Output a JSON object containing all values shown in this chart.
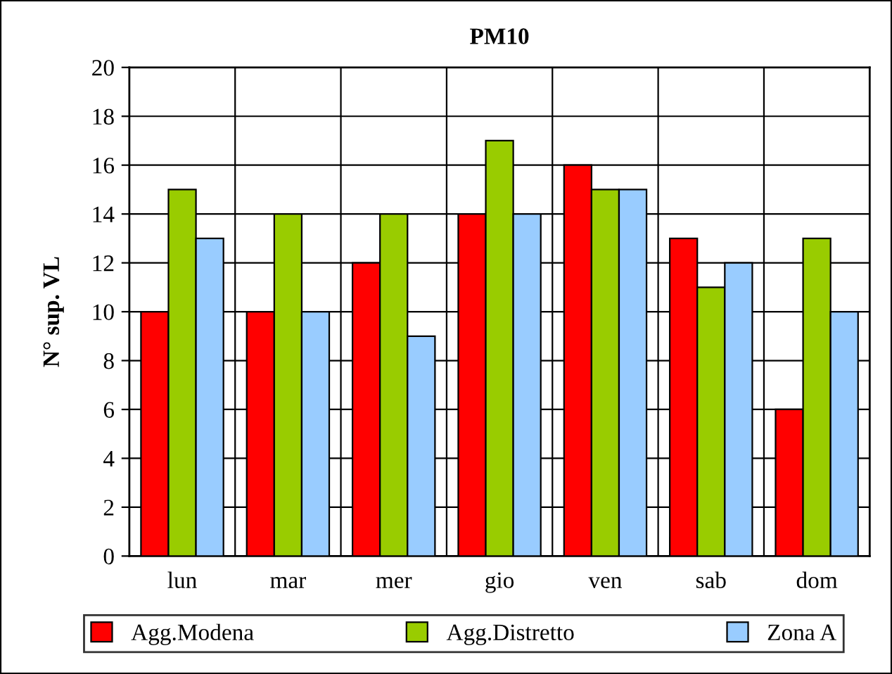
{
  "chart_data": {
    "type": "bar",
    "title": "PM10",
    "ylabel": "N° sup. VL",
    "categories": [
      "lun",
      "mar",
      "mer",
      "gio",
      "ven",
      "sab",
      "dom"
    ],
    "series": [
      {
        "name": "Agg.Modena",
        "color": "#ff0000",
        "values": [
          10,
          10,
          12,
          14,
          16,
          13,
          6
        ]
      },
      {
        "name": "Agg.Distretto",
        "color": "#99cc00",
        "values": [
          15,
          14,
          14,
          17,
          15,
          11,
          13
        ]
      },
      {
        "name": "Zona A",
        "color": "#99ccff",
        "values": [
          13,
          10,
          9,
          14,
          15,
          12,
          10
        ]
      }
    ],
    "ylim": [
      0,
      20
    ],
    "yticks": [
      0,
      2,
      4,
      6,
      8,
      10,
      12,
      14,
      16,
      18,
      20
    ],
    "grid": true,
    "legend": "bottom"
  }
}
